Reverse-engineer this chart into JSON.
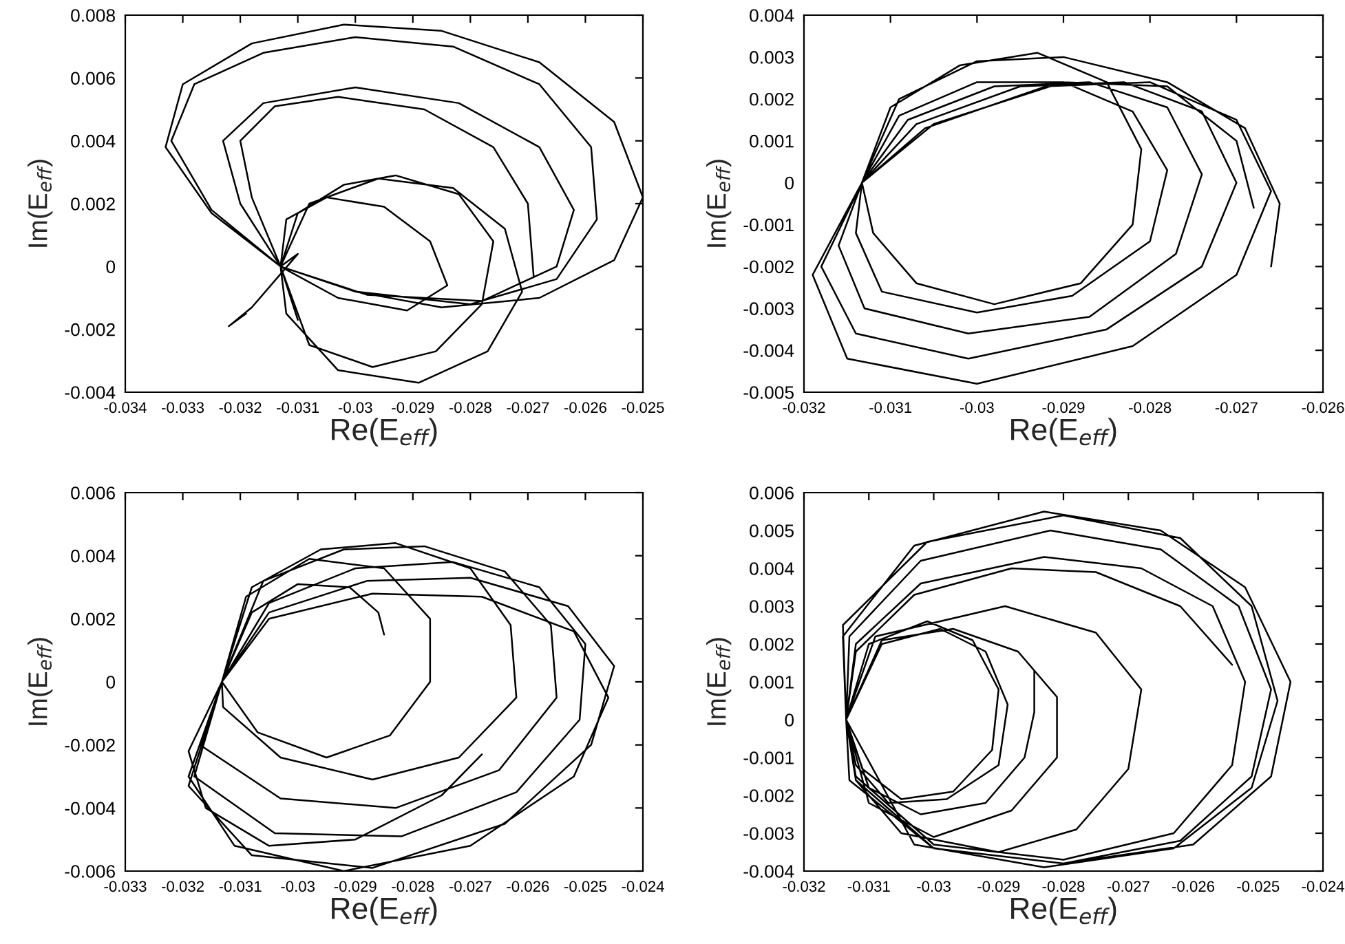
{
  "chart_data": [
    {
      "type": "line",
      "xlabel": "Re(E$_{eff}$)",
      "ylabel": "Im(E$_{eff}$)",
      "xlim": [
        -0.034,
        -0.025
      ],
      "ylim": [
        -0.004,
        0.008
      ],
      "xticks": [
        -0.034,
        -0.033,
        -0.032,
        -0.031,
        -0.03,
        -0.029,
        -0.028,
        -0.027,
        -0.026,
        -0.025
      ],
      "yticks": [
        -0.004,
        -0.002,
        0,
        0.002,
        0.004,
        0.006,
        0.008
      ],
      "series": [
        {
          "color": "#000000",
          "x": [
            -0.0319,
            -0.0322,
            -0.0318,
            -0.031,
            -0.0313,
            -0.0312,
            -0.0305,
            -0.0295,
            -0.0287,
            -0.0284,
            -0.0291,
            -0.0303,
            -0.0313,
            -0.031,
            -0.0313,
            -0.031,
            -0.0302,
            -0.0293,
            -0.0282,
            -0.0276,
            -0.0278,
            -0.0286,
            -0.0297,
            -0.0308,
            -0.0313,
            -0.0308,
            -0.0296,
            -0.0283,
            -0.0274,
            -0.0271,
            -0.0277,
            -0.0289,
            -0.0303,
            -0.0312,
            -0.0313,
            -0.032,
            -0.0323,
            -0.0316,
            -0.03,
            -0.0282,
            -0.0268,
            -0.0262,
            -0.0265,
            -0.0278,
            -0.0298,
            -0.0313,
            -0.0325,
            -0.0333,
            -0.033,
            -0.0318,
            -0.0302,
            -0.0285,
            -0.0268,
            -0.0255,
            -0.025,
            -0.0255,
            -0.0268,
            -0.0285,
            -0.03,
            -0.0313,
            -0.0325,
            -0.0332,
            -0.0328,
            -0.0316,
            -0.03,
            -0.0283,
            -0.0268,
            -0.0259,
            -0.0258,
            -0.0265,
            -0.028,
            -0.03,
            -0.0313,
            -0.0318,
            -0.032,
            -0.0314,
            -0.0303,
            -0.0288,
            -0.0276,
            -0.027,
            -0.0269
          ],
          "values": [
            -0.0015,
            -0.0019,
            -0.0013,
            0.0004,
            0,
            0.0015,
            0.0022,
            0.0019,
            0.0008,
            -0.0006,
            -0.0014,
            -0.001,
            0,
            -0.0017,
            0,
            0.0017,
            0.0026,
            0.0029,
            0.0023,
            0.0008,
            -0.0012,
            -0.0027,
            -0.0032,
            -0.0025,
            0,
            0.002,
            0.0028,
            0.0025,
            0.0012,
            -0.0008,
            -0.0027,
            -0.0037,
            -0.0033,
            -0.0015,
            0,
            0.002,
            0.004,
            0.0052,
            0.0057,
            0.0052,
            0.0038,
            0.0018,
            0,
            -0.0011,
            -0.0009,
            0,
            0.0017,
            0.0038,
            0.0058,
            0.0071,
            0.0077,
            0.0075,
            0.0065,
            0.0046,
            0.0022,
            0.0002,
            -0.001,
            -0.0013,
            -0.0008,
            0,
            0.0018,
            0.004,
            0.0058,
            0.0068,
            0.0073,
            0.007,
            0.0058,
            0.0038,
            0.0015,
            -0.0004,
            -0.0012,
            -0.0008,
            0,
            0.0022,
            0.004,
            0.0051,
            0.0054,
            0.005,
            0.0038,
            0.002,
            -0.0003
          ]
        }
      ]
    },
    {
      "type": "line",
      "xlabel": "Re(E$_{eff}$)",
      "ylabel": "Im(E$_{eff}$)",
      "xlim": [
        -0.032,
        -0.026
      ],
      "ylim": [
        -0.005,
        0.004
      ],
      "xticks": [
        -0.032,
        -0.031,
        -0.03,
        -0.029,
        -0.028,
        -0.027,
        -0.026
      ],
      "yticks": [
        -0.005,
        -0.004,
        -0.003,
        -0.002,
        -0.001,
        0,
        0.001,
        0.002,
        0.003,
        0.004
      ],
      "series": [
        {
          "color": "#000000",
          "x": [
            -0.0266,
            -0.0265,
            -0.0269,
            -0.0278,
            -0.029,
            -0.03,
            -0.0309,
            -0.03133,
            -0.0312,
            -0.0307,
            -0.0298,
            -0.0288,
            -0.0282,
            -0.0281,
            -0.0285,
            -0.0293,
            -0.0302,
            -0.031,
            -0.03133,
            -0.0314,
            -0.0311,
            -0.03,
            -0.0289,
            -0.028,
            -0.0278,
            -0.0282,
            -0.029,
            -0.03,
            -0.0309,
            -0.03133,
            -0.0316,
            -0.0313,
            -0.0301,
            -0.0287,
            -0.0277,
            -0.0274,
            -0.0278,
            -0.0287,
            -0.0298,
            -0.0308,
            -0.03133,
            -0.0318,
            -0.0314,
            -0.0301,
            -0.0285,
            -0.0274,
            -0.027,
            -0.0274,
            -0.0283,
            -0.0295,
            -0.0307,
            -0.03133,
            -0.0319,
            -0.0315,
            -0.03,
            -0.0282,
            -0.027,
            -0.0266,
            -0.027,
            -0.028,
            -0.0292,
            -0.0306,
            -0.03133,
            -0.0305,
            -0.029,
            -0.0278,
            -0.027,
            -0.0268
          ],
          "values": [
            -0.002,
            -0.0005,
            0.0013,
            0.0024,
            0.003,
            0.0029,
            0.002,
            0,
            -0.0012,
            -0.0024,
            -0.0029,
            -0.0024,
            -0.001,
            0.0008,
            0.0024,
            0.0031,
            0.0028,
            0.0018,
            0,
            -0.0012,
            -0.0026,
            -0.0031,
            -0.0027,
            -0.0014,
            0.0003,
            0.0017,
            0.0024,
            0.0024,
            0.0016,
            0,
            -0.0015,
            -0.003,
            -0.0036,
            -0.0032,
            -0.0017,
            0.0002,
            0.0018,
            0.0024,
            0.0023,
            0.0015,
            0,
            -0.002,
            -0.0036,
            -0.0042,
            -0.0035,
            -0.002,
            0,
            0.0017,
            0.0024,
            0.0023,
            0.0014,
            0,
            -0.0022,
            -0.0042,
            -0.0048,
            -0.0039,
            -0.0022,
            -0.0002,
            0.0015,
            0.0024,
            0.0023,
            0.0013,
            0,
            0.0014,
            0.0024,
            0.0023,
            0.001,
            -0.0006
          ]
        }
      ]
    },
    {
      "type": "line",
      "xlabel": "Re(E$_{eff}$)",
      "ylabel": "Im(E$_{eff}$)",
      "xlim": [
        -0.033,
        -0.024
      ],
      "ylim": [
        -0.006,
        0.006
      ],
      "xticks": [
        -0.033,
        -0.032,
        -0.031,
        -0.03,
        -0.029,
        -0.028,
        -0.027,
        -0.026,
        -0.025,
        -0.024
      ],
      "yticks": [
        -0.006,
        -0.004,
        -0.002,
        0,
        0.002,
        0.004,
        0.006
      ],
      "series": [
        {
          "color": "#000000",
          "x": [
            -0.0268,
            -0.0275,
            -0.029,
            -0.0305,
            -0.0316,
            -0.0319,
            -0.03132,
            -0.0305,
            -0.0287,
            -0.0268,
            -0.0252,
            -0.0246,
            -0.0252,
            -0.027,
            -0.0292,
            -0.0311,
            -0.0319,
            -0.03132,
            -0.0305,
            -0.0288,
            -0.027,
            -0.0253,
            -0.0245,
            -0.0249,
            -0.0264,
            -0.0287,
            -0.0308,
            -0.0319,
            -0.03132,
            -0.0305,
            -0.029,
            -0.0273,
            -0.0258,
            -0.025,
            -0.0251,
            -0.0262,
            -0.0282,
            -0.0304,
            -0.0318,
            -0.03132,
            -0.0306,
            -0.0292,
            -0.0278,
            -0.0264,
            -0.0256,
            -0.0255,
            -0.0265,
            -0.0283,
            -0.0303,
            -0.0317,
            -0.03132,
            -0.0308,
            -0.0296,
            -0.0283,
            -0.027,
            -0.0263,
            -0.0262,
            -0.0272,
            -0.0287,
            -0.0303,
            -0.0313,
            -0.03132,
            -0.0309,
            -0.0298,
            -0.0285,
            -0.0277,
            -0.0277,
            -0.0284,
            -0.0295,
            -0.0307,
            -0.03132,
            -0.0308,
            -0.03,
            -0.0291,
            -0.0286,
            -0.0285
          ],
          "values": [
            -0.0023,
            -0.0036,
            -0.005,
            -0.0052,
            -0.004,
            -0.0022,
            0,
            0.002,
            0.0028,
            0.0027,
            0.0016,
            -0.0005,
            -0.003,
            -0.0052,
            -0.006,
            -0.0052,
            -0.003,
            0,
            0.0022,
            0.0032,
            0.0033,
            0.0024,
            0.0005,
            -0.002,
            -0.0045,
            -0.0059,
            -0.0055,
            -0.0033,
            0,
            0.0025,
            0.0036,
            0.0038,
            0.003,
            0.0012,
            -0.0012,
            -0.0035,
            -0.0049,
            -0.0048,
            -0.003,
            0,
            0.0032,
            0.0042,
            0.0043,
            0.0035,
            0.0018,
            -0.0005,
            -0.0028,
            -0.004,
            -0.0037,
            -0.002,
            0,
            0.003,
            0.0042,
            0.0044,
            0.0036,
            0.0018,
            -0.0005,
            -0.0024,
            -0.0031,
            -0.0024,
            -0.0008,
            0,
            0.0027,
            0.0039,
            0.0036,
            0.002,
            0,
            -0.0017,
            -0.0024,
            -0.0016,
            0,
            0.0022,
            0.0031,
            0.003,
            0.0022,
            0.0015
          ]
        }
      ]
    },
    {
      "type": "line",
      "xlabel": "Re(E$_{eff}$)",
      "ylabel": "Im(E$_{eff}$)",
      "xlim": [
        -0.032,
        -0.024
      ],
      "ylim": [
        -0.004,
        0.006
      ],
      "xticks": [
        -0.032,
        -0.031,
        -0.03,
        -0.029,
        -0.028,
        -0.027,
        -0.026,
        -0.025,
        -0.024
      ],
      "yticks": [
        -0.004,
        -0.003,
        -0.002,
        -0.001,
        0,
        0.001,
        0.002,
        0.003,
        0.004,
        0.005,
        0.006
      ],
      "series": [
        {
          "color": "#000000",
          "x": [
            -0.02845,
            -0.02845,
            -0.0286,
            -0.0292,
            -0.0302,
            -0.031,
            -0.03135,
            -0.031,
            -0.0301,
            -0.0294,
            -0.029,
            -0.0291,
            -0.0297,
            -0.0305,
            -0.0311,
            -0.03135,
            -0.0308,
            -0.0299,
            -0.0292,
            -0.02886,
            -0.029,
            -0.0298,
            -0.0307,
            -0.0312,
            -0.03135,
            -0.0308,
            -0.0297,
            -0.0287,
            -0.0281,
            -0.0281,
            -0.0288,
            -0.03,
            -0.031,
            -0.03135,
            -0.0309,
            -0.0289,
            -0.0275,
            -0.0268,
            -0.027,
            -0.0278,
            -0.029,
            -0.0305,
            -0.0312,
            -0.03135,
            -0.0312,
            -0.0302,
            -0.0283,
            -0.0268,
            -0.0257,
            -0.0252,
            -0.0254,
            -0.0263,
            -0.028,
            -0.03,
            -0.0312,
            -0.03135,
            -0.0313,
            -0.0302,
            -0.0282,
            -0.0265,
            -0.0253,
            -0.0248,
            -0.0251,
            -0.0262,
            -0.028,
            -0.03,
            -0.0312,
            -0.03135,
            -0.0314,
            -0.0301,
            -0.028,
            -0.0262,
            -0.0251,
            -0.0247,
            -0.0251,
            -0.0263,
            -0.0283,
            -0.0303,
            -0.03135,
            -0.0314,
            -0.0303,
            -0.0283,
            -0.0265,
            -0.0252,
            -0.0245,
            -0.0248,
            -0.026,
            -0.028,
            -0.03,
            -0.0313,
            -0.03135,
            -0.0312,
            -0.0303,
            -0.0288,
            -0.0275,
            -0.0262,
            -0.0254
          ],
          "values": [
            0.0013,
            0.0002,
            -0.001,
            -0.0022,
            -0.0025,
            -0.0018,
            0,
            0.002,
            0.0026,
            0.0021,
            0.0008,
            -0.0008,
            -0.0019,
            -0.0021,
            -0.0013,
            0,
            0.002,
            0.0024,
            0.0018,
            0.0004,
            -0.0012,
            -0.0021,
            -0.0022,
            -0.0012,
            0,
            0.0021,
            0.0024,
            0.0018,
            0.0006,
            -0.001,
            -0.0024,
            -0.0031,
            -0.0022,
            0,
            0.0022,
            0.003,
            0.0023,
            0.0008,
            -0.0013,
            -0.0029,
            -0.0035,
            -0.003,
            -0.0016,
            0,
            0.002,
            0.0036,
            0.0043,
            0.004,
            0.003,
            0.001,
            -0.0012,
            -0.003,
            -0.0037,
            -0.0033,
            -0.0015,
            0,
            0.0022,
            0.0042,
            0.005,
            0.0045,
            0.003,
            0.0008,
            -0.0015,
            -0.0032,
            -0.0038,
            -0.0034,
            -0.0016,
            0,
            0.0025,
            0.0047,
            0.0054,
            0.0048,
            0.003,
            0.0005,
            -0.0018,
            -0.0034,
            -0.0039,
            -0.0033,
            0,
            0.0022,
            0.0046,
            0.0055,
            0.005,
            0.0035,
            0.001,
            -0.0015,
            -0.0033,
            -0.0038,
            -0.0034,
            -0.0016,
            0,
            0.0018,
            0.0033,
            0.004,
            0.0039,
            0.003,
            0.00145
          ]
        }
      ]
    }
  ]
}
